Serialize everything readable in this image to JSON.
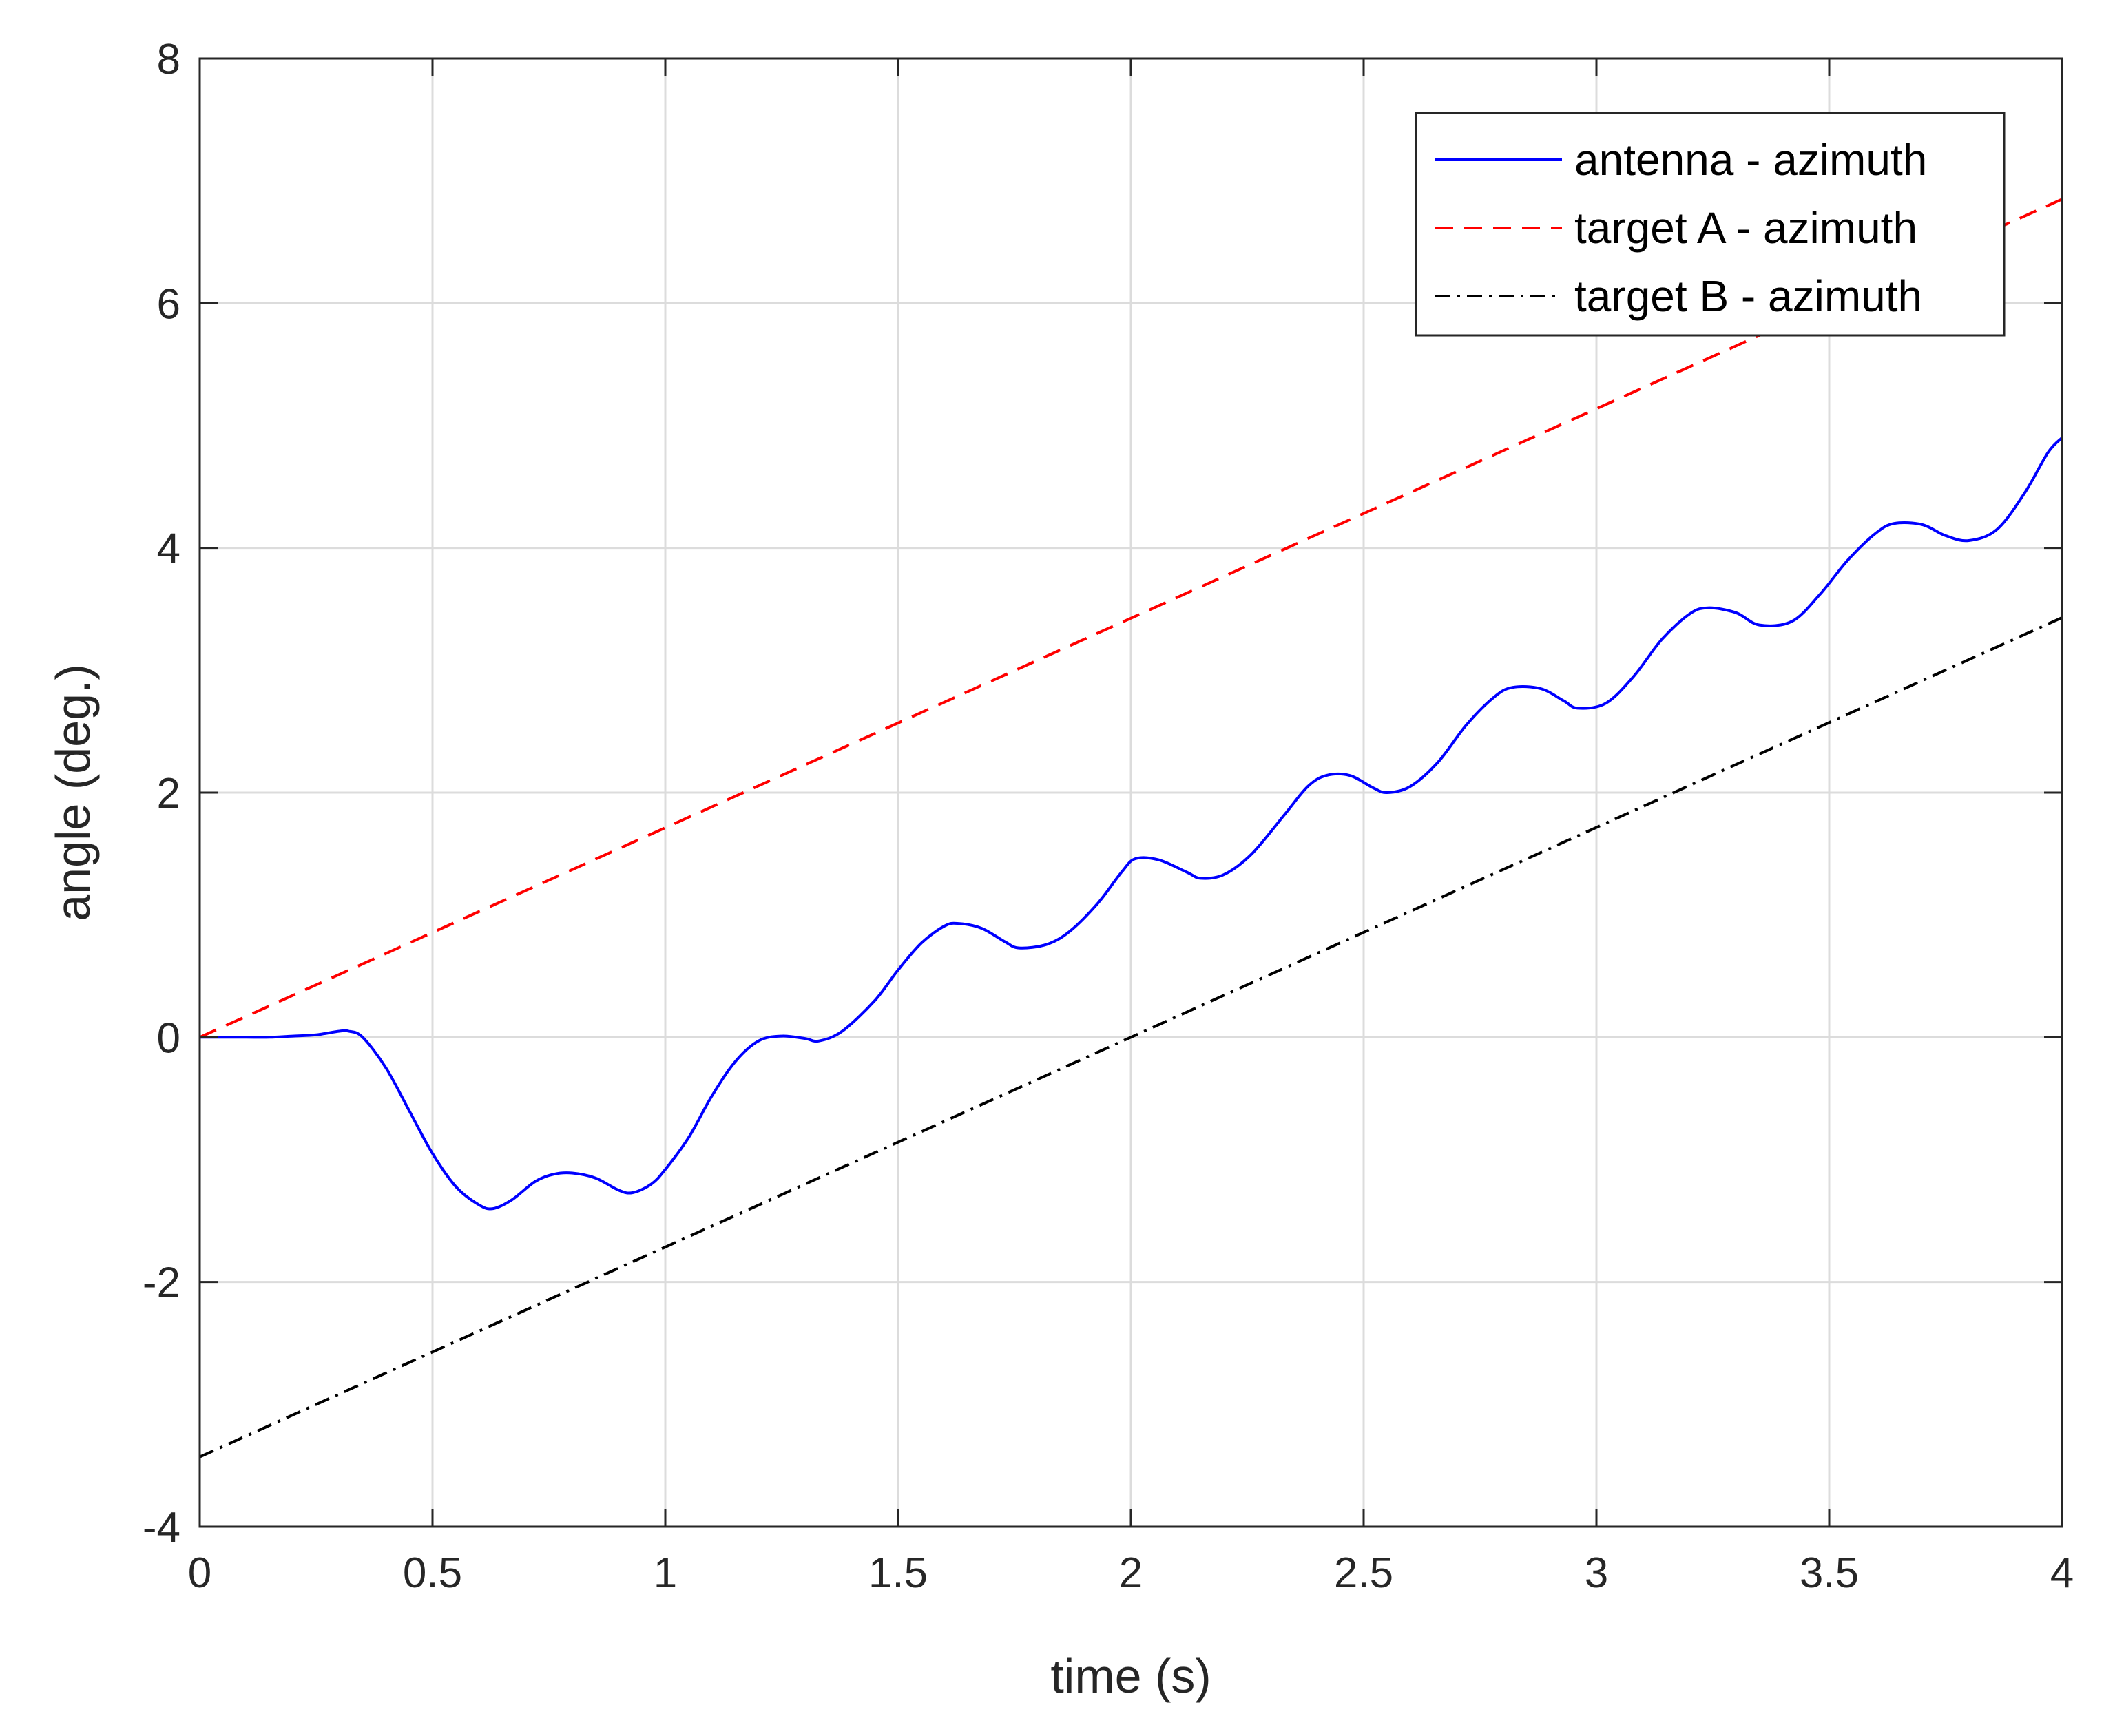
{
  "chart_data": {
    "type": "line",
    "title": "",
    "xlabel": "time (s)",
    "ylabel": "angle (deg.)",
    "xlim": [
      0,
      4
    ],
    "ylim": [
      -4,
      8
    ],
    "xticks": [
      0,
      0.5,
      1,
      1.5,
      2,
      2.5,
      3,
      3.5,
      4
    ],
    "yticks": [
      -4,
      -2,
      0,
      2,
      4,
      6,
      8
    ],
    "xtick_labels": [
      "0",
      "0.5",
      "1",
      "1.5",
      "2",
      "2.5",
      "3",
      "3.5",
      "4"
    ],
    "ytick_labels": [
      "-4",
      "-2",
      "0",
      "2",
      "4",
      "6",
      "8"
    ],
    "grid": true,
    "legend": {
      "location": "top-right",
      "boxed": true
    },
    "series": [
      {
        "name": "antenna - azimuth",
        "color": "#0000ff",
        "style": "solid",
        "x": [
          0,
          0.05,
          0.1,
          0.15,
          0.2,
          0.25,
          0.3,
          0.32,
          0.35,
          0.4,
          0.45,
          0.5,
          0.55,
          0.6,
          0.63,
          0.67,
          0.72,
          0.76,
          0.8,
          0.85,
          0.9,
          0.93,
          0.97,
          1.0,
          1.05,
          1.1,
          1.15,
          1.2,
          1.25,
          1.3,
          1.33,
          1.38,
          1.45,
          1.5,
          1.55,
          1.6,
          1.63,
          1.68,
          1.73,
          1.76,
          1.82,
          1.87,
          1.93,
          1.98,
          2.01,
          2.06,
          2.12,
          2.15,
          2.2,
          2.26,
          2.33,
          2.38,
          2.42,
          2.47,
          2.52,
          2.55,
          2.6,
          2.66,
          2.72,
          2.78,
          2.82,
          2.88,
          2.93,
          2.96,
          3.02,
          3.08,
          3.14,
          3.2,
          3.24,
          3.3,
          3.35,
          3.42,
          3.48,
          3.54,
          3.6,
          3.64,
          3.7,
          3.75,
          3.8,
          3.86,
          3.92,
          3.97,
          4.0
        ],
        "y": [
          0,
          0,
          0,
          0,
          0.01,
          0.02,
          0.05,
          0.05,
          0.0,
          -0.25,
          -0.6,
          -0.95,
          -1.22,
          -1.37,
          -1.4,
          -1.33,
          -1.18,
          -1.12,
          -1.11,
          -1.15,
          -1.25,
          -1.27,
          -1.2,
          -1.08,
          -0.82,
          -0.48,
          -0.2,
          -0.03,
          0.01,
          -0.01,
          -0.03,
          0.05,
          0.3,
          0.55,
          0.77,
          0.91,
          0.93,
          0.89,
          0.78,
          0.73,
          0.76,
          0.87,
          1.1,
          1.35,
          1.46,
          1.45,
          1.35,
          1.3,
          1.33,
          1.5,
          1.82,
          2.05,
          2.14,
          2.14,
          2.04,
          2.0,
          2.05,
          2.25,
          2.55,
          2.78,
          2.86,
          2.85,
          2.75,
          2.69,
          2.73,
          2.95,
          3.25,
          3.46,
          3.51,
          3.47,
          3.37,
          3.4,
          3.62,
          3.9,
          4.12,
          4.2,
          4.19,
          4.1,
          4.06,
          4.15,
          4.45,
          4.78,
          4.9
        ]
      },
      {
        "name": "target A - azimuth",
        "color": "#ff0000",
        "style": "dashed",
        "x": [
          0,
          4
        ],
        "y": [
          0,
          6.85
        ]
      },
      {
        "name": "target B - azimuth",
        "color": "#000000",
        "style": "dashdot",
        "x": [
          0,
          4
        ],
        "y": [
          -3.43,
          3.43
        ]
      }
    ]
  }
}
